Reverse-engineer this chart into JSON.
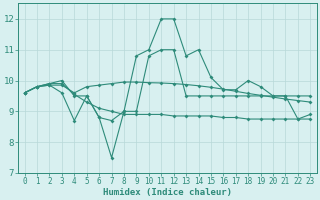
{
  "xlabel": "Humidex (Indice chaleur)",
  "x": [
    0,
    1,
    2,
    3,
    4,
    5,
    6,
    7,
    8,
    9,
    10,
    11,
    12,
    13,
    14,
    15,
    16,
    17,
    18,
    19,
    20,
    21,
    22,
    23
  ],
  "line1": [
    9.6,
    9.8,
    9.85,
    9.85,
    9.6,
    9.8,
    9.85,
    9.9,
    9.95,
    9.95,
    9.93,
    9.92,
    9.9,
    9.87,
    9.83,
    9.78,
    9.72,
    9.65,
    9.58,
    9.52,
    9.46,
    9.4,
    9.35,
    9.3
  ],
  "line2": [
    9.6,
    9.8,
    9.9,
    10.0,
    9.5,
    9.5,
    8.8,
    8.7,
    9.0,
    10.8,
    11.0,
    12.0,
    12.0,
    10.8,
    11.0,
    10.1,
    9.7,
    9.7,
    10.0,
    9.8,
    9.5,
    9.5,
    8.75,
    8.9
  ],
  "line3": [
    9.6,
    9.8,
    9.85,
    9.6,
    8.7,
    9.5,
    8.8,
    7.5,
    9.0,
    9.0,
    10.8,
    11.0,
    11.0,
    9.5,
    9.5,
    9.5,
    9.5,
    9.5,
    9.5,
    9.5,
    9.5,
    9.5,
    9.5,
    9.5
  ],
  "line4": [
    9.6,
    9.8,
    9.9,
    9.9,
    9.55,
    9.3,
    9.1,
    9.0,
    8.9,
    8.9,
    8.9,
    8.9,
    8.85,
    8.85,
    8.85,
    8.85,
    8.8,
    8.8,
    8.75,
    8.75,
    8.75,
    8.75,
    8.75,
    8.75
  ],
  "color": "#2e8b7a",
  "bg_color": "#d8f0f0",
  "grid_color": "#b8d8d8",
  "ylim": [
    7.0,
    12.5
  ],
  "yticks": [
    7,
    8,
    9,
    10,
    11,
    12
  ],
  "xticks": [
    0,
    1,
    2,
    3,
    4,
    5,
    6,
    7,
    8,
    9,
    10,
    11,
    12,
    13,
    14,
    15,
    16,
    17,
    18,
    19,
    20,
    21,
    22,
    23
  ]
}
